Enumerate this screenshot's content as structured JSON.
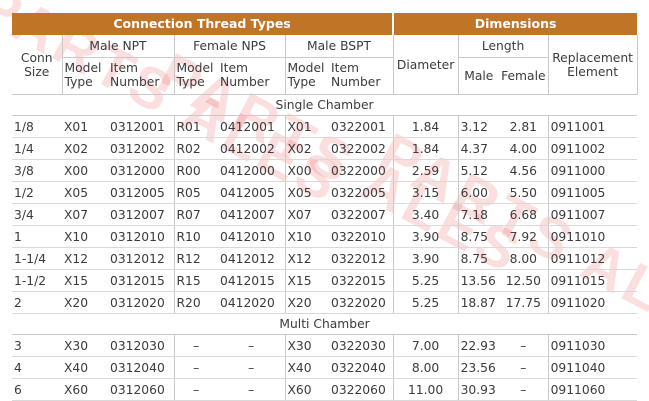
{
  "watermark": "PARTS ALES",
  "header": {
    "connection_thread_types": "Connection Thread Types",
    "dimensions": "Dimensions",
    "conn_size_l1": "Conn",
    "conn_size_l2": "Size",
    "male_npt": "Male NPT",
    "female_nps": "Female NPS",
    "male_bspt": "Male BSPT",
    "diameter": "Diameter",
    "length": "Length",
    "male": "Male",
    "female": "Female",
    "replacement_l1": "Replacement",
    "replacement_l2": "Element",
    "model_l1": "Model",
    "model_l2": "Type",
    "item_l1": "Item",
    "item_l2": "Number"
  },
  "sections": [
    {
      "title": "Single Chamber",
      "rows": [
        {
          "size": "1/8",
          "npt_model": "X01",
          "npt_item": "0312001",
          "nps_model": "R01",
          "nps_item": "0412001",
          "bspt_model": "X01",
          "bspt_item": "0322001",
          "diameter": "1.84",
          "len_male": "3.12",
          "len_female": "2.81",
          "replacement": "0911001"
        },
        {
          "size": "1/4",
          "npt_model": "X02",
          "npt_item": "0312002",
          "nps_model": "R02",
          "nps_item": "0412002",
          "bspt_model": "X02",
          "bspt_item": "0322002",
          "diameter": "1.84",
          "len_male": "4.37",
          "len_female": "4.00",
          "replacement": "0911002"
        },
        {
          "size": "3/8",
          "npt_model": "X00",
          "npt_item": "0312000",
          "nps_model": "R00",
          "nps_item": "0412000",
          "bspt_model": "X00",
          "bspt_item": "0322000",
          "diameter": "2.59",
          "len_male": "5.12",
          "len_female": "4.56",
          "replacement": "0911000"
        },
        {
          "size": "1/2",
          "npt_model": "X05",
          "npt_item": "0312005",
          "nps_model": "R05",
          "nps_item": "0412005",
          "bspt_model": "X05",
          "bspt_item": "0322005",
          "diameter": "3.15",
          "len_male": "6.00",
          "len_female": "5.50",
          "replacement": "0911005"
        },
        {
          "size": "3/4",
          "npt_model": "X07",
          "npt_item": "0312007",
          "nps_model": "R07",
          "nps_item": "0412007",
          "bspt_model": "X07",
          "bspt_item": "0322007",
          "diameter": "3.40",
          "len_male": "7.18",
          "len_female": "6.68",
          "replacement": "0911007"
        },
        {
          "size": "1",
          "npt_model": "X10",
          "npt_item": "0312010",
          "nps_model": "R10",
          "nps_item": "0412010",
          "bspt_model": "X10",
          "bspt_item": "0322010",
          "diameter": "3.90",
          "len_male": "8.75",
          "len_female": "7.92",
          "replacement": "0911010"
        },
        {
          "size": "1-1/4",
          "npt_model": "X12",
          "npt_item": "0312012",
          "nps_model": "R12",
          "nps_item": "0412012",
          "bspt_model": "X12",
          "bspt_item": "0322012",
          "diameter": "3.90",
          "len_male": "8.75",
          "len_female": "8.00",
          "replacement": "0911012"
        },
        {
          "size": "1-1/2",
          "npt_model": "X15",
          "npt_item": "0312015",
          "nps_model": "R15",
          "nps_item": "0412015",
          "bspt_model": "X15",
          "bspt_item": "0322015",
          "diameter": "5.25",
          "len_male": "13.56",
          "len_female": "12.50",
          "replacement": "0911015"
        },
        {
          "size": "2",
          "npt_model": "X20",
          "npt_item": "0312020",
          "nps_model": "R20",
          "nps_item": "0412020",
          "bspt_model": "X20",
          "bspt_item": "0322020",
          "diameter": "5.25",
          "len_male": "18.87",
          "len_female": "17.75",
          "replacement": "0911020"
        }
      ]
    },
    {
      "title": "Multi Chamber",
      "rows": [
        {
          "size": "3",
          "npt_model": "X30",
          "npt_item": "0312030",
          "nps_model": "–",
          "nps_item": "–",
          "bspt_model": "X30",
          "bspt_item": "0322030",
          "diameter": "7.00",
          "len_male": "22.93",
          "len_female": "–",
          "replacement": "0911030"
        },
        {
          "size": "4",
          "npt_model": "X40",
          "npt_item": "0312040",
          "nps_model": "–",
          "nps_item": "–",
          "bspt_model": "X40",
          "bspt_item": "0322040",
          "diameter": "8.00",
          "len_male": "23.56",
          "len_female": "–",
          "replacement": "0911040"
        },
        {
          "size": "6",
          "npt_model": "X60",
          "npt_item": "0312060",
          "nps_model": "–",
          "nps_item": "–",
          "bspt_model": "X60",
          "bspt_item": "0322060",
          "diameter": "11.00",
          "len_male": "30.93",
          "len_female": "–",
          "replacement": "0911060"
        }
      ]
    }
  ]
}
